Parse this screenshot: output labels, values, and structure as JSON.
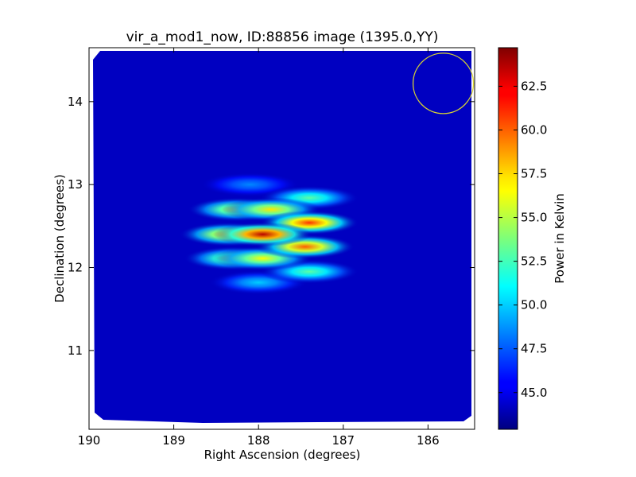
{
  "chart_data": {
    "type": "heatmap",
    "title": "vir_a_mod1_now, ID:88856 image (1395.0,YY)",
    "xlabel": "Right Ascension (degrees)",
    "ylabel": "Declination (degrees)",
    "xlim": [
      190,
      185.45
    ],
    "ylim": [
      10.05,
      14.65
    ],
    "x_ticks": [
      190,
      189,
      188,
      187,
      186
    ],
    "x_tick_labels": [
      "190",
      "189",
      "188",
      "187",
      "186"
    ],
    "y_ticks": [
      11,
      12,
      13,
      14
    ],
    "y_tick_labels": [
      "11",
      "12",
      "13",
      "14"
    ],
    "colorbar": {
      "label": "Power in Kelvin",
      "colormap": "jet",
      "range": [
        42.9,
        64.7
      ],
      "ticks": [
        45.0,
        47.5,
        50.0,
        52.5,
        55.0,
        57.5,
        60.0,
        62.5
      ],
      "tick_labels": [
        "45.0",
        "47.5",
        "50.0",
        "52.5",
        "55.0",
        "57.5",
        "60.0",
        "62.5"
      ]
    },
    "background_level": 44.3,
    "sources": [
      {
        "ra": 187.95,
        "dec": 12.4,
        "peak": 63.5
      },
      {
        "ra": 188.35,
        "dec": 12.4,
        "peak": 57.5
      },
      {
        "ra": 187.4,
        "dec": 12.54,
        "peak": 61.0
      },
      {
        "ra": 187.45,
        "dec": 12.25,
        "peak": 60.0
      },
      {
        "ra": 187.85,
        "dec": 12.7,
        "peak": 57.0
      },
      {
        "ra": 188.25,
        "dec": 12.7,
        "peak": 56.0
      },
      {
        "ra": 187.95,
        "dec": 12.11,
        "peak": 56.5
      },
      {
        "ra": 188.3,
        "dec": 12.11,
        "peak": 55.0
      },
      {
        "ra": 187.4,
        "dec": 12.84,
        "peak": 53.0
      },
      {
        "ra": 187.4,
        "dec": 11.95,
        "peak": 53.0
      },
      {
        "ra": 188.0,
        "dec": 11.82,
        "peak": 50.0
      },
      {
        "ra": 188.1,
        "dec": 13.0,
        "peak": 48.5
      }
    ],
    "beam_circle": {
      "ra": 185.82,
      "dec": 14.22,
      "color": "#d6d233"
    }
  }
}
